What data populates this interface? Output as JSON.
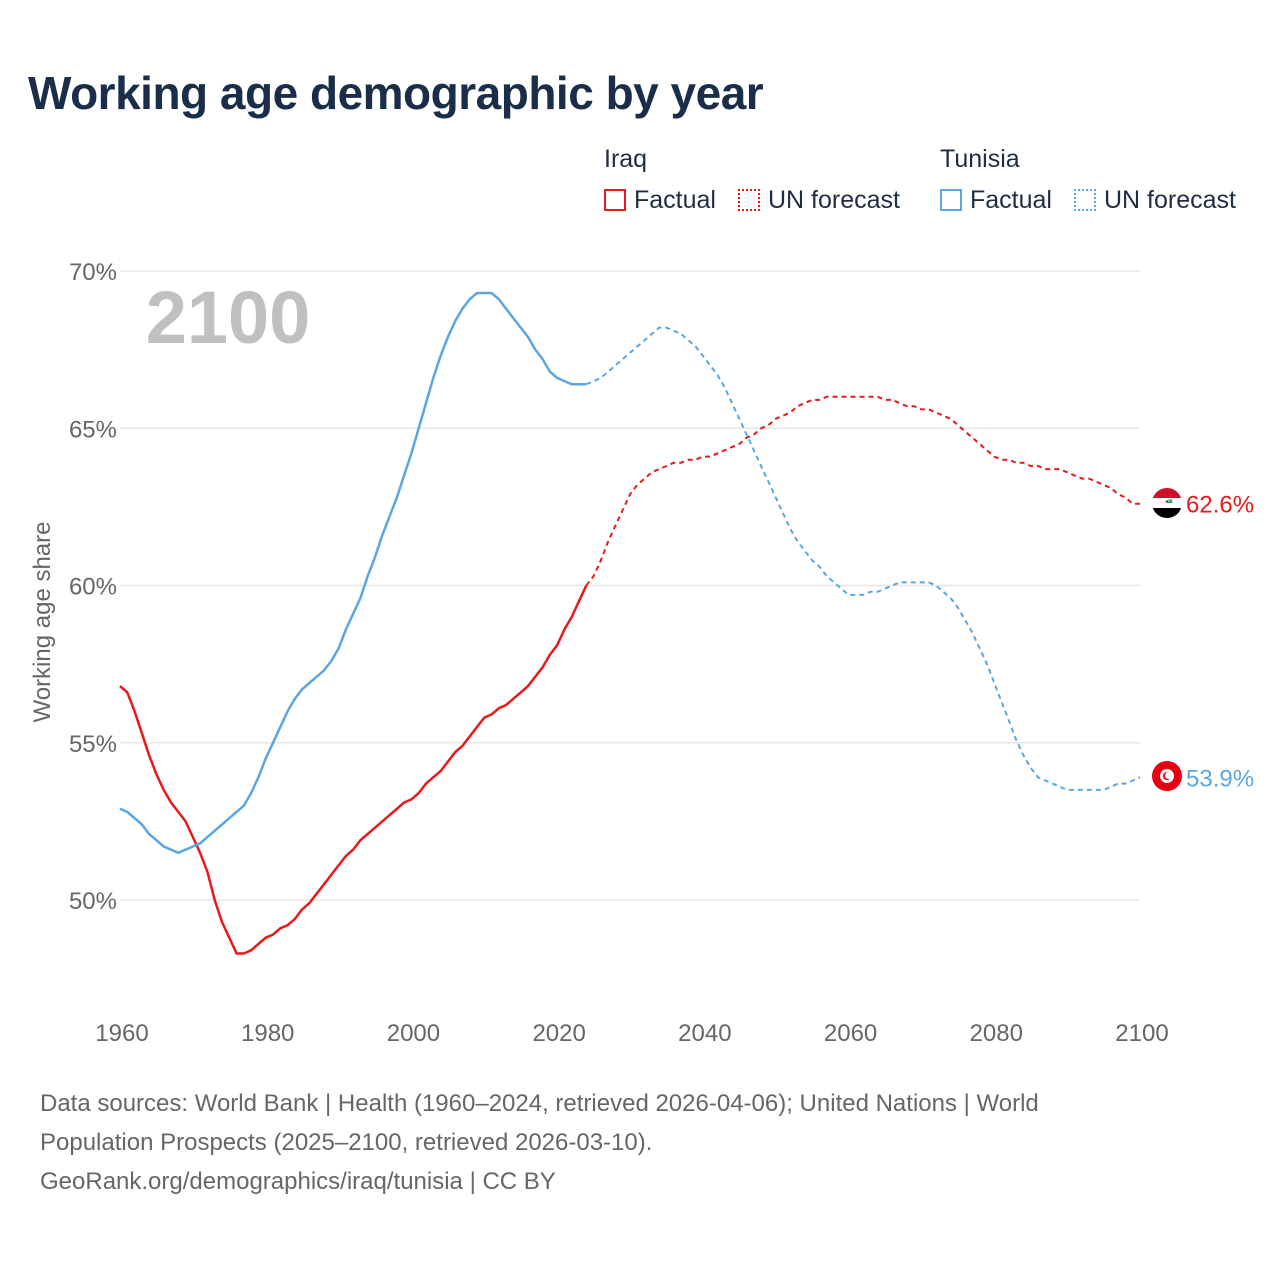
{
  "title": "Working age demographic by year",
  "legend": {
    "groups": [
      {
        "name": "Iraq",
        "factual_label": "Factual",
        "forecast_label": "UN forecast",
        "color": "#e8191a"
      },
      {
        "name": "Tunisia",
        "factual_label": "Factual",
        "forecast_label": "UN forecast",
        "color": "#5aa6e0"
      }
    ]
  },
  "chart_data": {
    "type": "line",
    "title": "Working age demographic by year",
    "ylabel": "Working age share",
    "xlabel": "",
    "xlim": [
      1960,
      2100
    ],
    "ylim": [
      46.5,
      71
    ],
    "x_ticks": [
      1960,
      1980,
      2000,
      2020,
      2040,
      2060,
      2080,
      2100
    ],
    "x_tick_labels": [
      "1960",
      "1980",
      "2000",
      "2020",
      "2040",
      "2060",
      "2080",
      "2100"
    ],
    "y_ticks": [
      50,
      55,
      60,
      65,
      70
    ],
    "y_tick_labels": [
      "50%",
      "55%",
      "60%",
      "65%",
      "70%"
    ],
    "grid": true,
    "year_label": "2100",
    "forecast_start": 2024,
    "series": [
      {
        "name": "Iraq",
        "color": "#e8191a",
        "end_label": "62.6%",
        "points": [
          [
            1960,
            56.8
          ],
          [
            1961,
            56.6
          ],
          [
            1962,
            56.0
          ],
          [
            1963,
            55.3
          ],
          [
            1964,
            54.6
          ],
          [
            1965,
            54.0
          ],
          [
            1966,
            53.5
          ],
          [
            1967,
            53.1
          ],
          [
            1968,
            52.8
          ],
          [
            1969,
            52.5
          ],
          [
            1970,
            52.0
          ],
          [
            1971,
            51.5
          ],
          [
            1972,
            50.9
          ],
          [
            1973,
            50.0
          ],
          [
            1974,
            49.3
          ],
          [
            1975,
            48.8
          ],
          [
            1976,
            48.3
          ],
          [
            1977,
            48.3
          ],
          [
            1978,
            48.4
          ],
          [
            1979,
            48.6
          ],
          [
            1980,
            48.8
          ],
          [
            1981,
            48.9
          ],
          [
            1982,
            49.1
          ],
          [
            1983,
            49.2
          ],
          [
            1984,
            49.4
          ],
          [
            1985,
            49.7
          ],
          [
            1986,
            49.9
          ],
          [
            1987,
            50.2
          ],
          [
            1988,
            50.5
          ],
          [
            1989,
            50.8
          ],
          [
            1990,
            51.1
          ],
          [
            1991,
            51.4
          ],
          [
            1992,
            51.6
          ],
          [
            1993,
            51.9
          ],
          [
            1994,
            52.1
          ],
          [
            1995,
            52.3
          ],
          [
            1996,
            52.5
          ],
          [
            1997,
            52.7
          ],
          [
            1998,
            52.9
          ],
          [
            1999,
            53.1
          ],
          [
            2000,
            53.2
          ],
          [
            2001,
            53.4
          ],
          [
            2002,
            53.7
          ],
          [
            2003,
            53.9
          ],
          [
            2004,
            54.1
          ],
          [
            2005,
            54.4
          ],
          [
            2006,
            54.7
          ],
          [
            2007,
            54.9
          ],
          [
            2008,
            55.2
          ],
          [
            2009,
            55.5
          ],
          [
            2010,
            55.8
          ],
          [
            2011,
            55.9
          ],
          [
            2012,
            56.1
          ],
          [
            2013,
            56.2
          ],
          [
            2014,
            56.4
          ],
          [
            2015,
            56.6
          ],
          [
            2016,
            56.8
          ],
          [
            2017,
            57.1
          ],
          [
            2018,
            57.4
          ],
          [
            2019,
            57.8
          ],
          [
            2020,
            58.1
          ],
          [
            2021,
            58.6
          ],
          [
            2022,
            59.0
          ],
          [
            2023,
            59.5
          ],
          [
            2024,
            60.0
          ],
          [
            2025,
            60.3
          ],
          [
            2026,
            60.8
          ],
          [
            2027,
            61.4
          ],
          [
            2028,
            61.9
          ],
          [
            2029,
            62.4
          ],
          [
            2030,
            62.9
          ],
          [
            2031,
            63.2
          ],
          [
            2032,
            63.4
          ],
          [
            2033,
            63.6
          ],
          [
            2034,
            63.7
          ],
          [
            2035,
            63.8
          ],
          [
            2036,
            63.9
          ],
          [
            2037,
            63.9
          ],
          [
            2038,
            64.0
          ],
          [
            2039,
            64.0
          ],
          [
            2040,
            64.1
          ],
          [
            2041,
            64.1
          ],
          [
            2042,
            64.2
          ],
          [
            2043,
            64.3
          ],
          [
            2044,
            64.4
          ],
          [
            2045,
            64.5
          ],
          [
            2046,
            64.7
          ],
          [
            2047,
            64.8
          ],
          [
            2048,
            65.0
          ],
          [
            2049,
            65.1
          ],
          [
            2050,
            65.3
          ],
          [
            2051,
            65.4
          ],
          [
            2052,
            65.5
          ],
          [
            2053,
            65.7
          ],
          [
            2054,
            65.8
          ],
          [
            2055,
            65.9
          ],
          [
            2056,
            65.9
          ],
          [
            2057,
            66.0
          ],
          [
            2058,
            66.0
          ],
          [
            2059,
            66.0
          ],
          [
            2060,
            66.0
          ],
          [
            2061,
            66.0
          ],
          [
            2062,
            66.0
          ],
          [
            2063,
            66.0
          ],
          [
            2064,
            66.0
          ],
          [
            2065,
            65.9
          ],
          [
            2066,
            65.9
          ],
          [
            2067,
            65.8
          ],
          [
            2068,
            65.7
          ],
          [
            2069,
            65.7
          ],
          [
            2070,
            65.6
          ],
          [
            2071,
            65.6
          ],
          [
            2072,
            65.5
          ],
          [
            2073,
            65.4
          ],
          [
            2074,
            65.3
          ],
          [
            2075,
            65.1
          ],
          [
            2076,
            64.9
          ],
          [
            2077,
            64.7
          ],
          [
            2078,
            64.5
          ],
          [
            2079,
            64.3
          ],
          [
            2080,
            64.1
          ],
          [
            2081,
            64.0
          ],
          [
            2082,
            64.0
          ],
          [
            2083,
            63.9
          ],
          [
            2084,
            63.9
          ],
          [
            2085,
            63.8
          ],
          [
            2086,
            63.8
          ],
          [
            2087,
            63.7
          ],
          [
            2088,
            63.7
          ],
          [
            2089,
            63.7
          ],
          [
            2090,
            63.6
          ],
          [
            2091,
            63.5
          ],
          [
            2092,
            63.4
          ],
          [
            2093,
            63.4
          ],
          [
            2094,
            63.3
          ],
          [
            2095,
            63.2
          ],
          [
            2096,
            63.1
          ],
          [
            2097,
            62.9
          ],
          [
            2098,
            62.8
          ],
          [
            2099,
            62.6
          ],
          [
            2100,
            62.6
          ]
        ]
      },
      {
        "name": "Tunisia",
        "color": "#5aa6e0",
        "end_label": "53.9%",
        "points": [
          [
            1960,
            52.9
          ],
          [
            1961,
            52.8
          ],
          [
            1962,
            52.6
          ],
          [
            1963,
            52.4
          ],
          [
            1964,
            52.1
          ],
          [
            1965,
            51.9
          ],
          [
            1966,
            51.7
          ],
          [
            1967,
            51.6
          ],
          [
            1968,
            51.5
          ],
          [
            1969,
            51.6
          ],
          [
            1970,
            51.7
          ],
          [
            1971,
            51.8
          ],
          [
            1972,
            52.0
          ],
          [
            1973,
            52.2
          ],
          [
            1974,
            52.4
          ],
          [
            1975,
            52.6
          ],
          [
            1976,
            52.8
          ],
          [
            1977,
            53.0
          ],
          [
            1978,
            53.4
          ],
          [
            1979,
            53.9
          ],
          [
            1980,
            54.5
          ],
          [
            1981,
            55.0
          ],
          [
            1982,
            55.5
          ],
          [
            1983,
            56.0
          ],
          [
            1984,
            56.4
          ],
          [
            1985,
            56.7
          ],
          [
            1986,
            56.9
          ],
          [
            1987,
            57.1
          ],
          [
            1988,
            57.3
          ],
          [
            1989,
            57.6
          ],
          [
            1990,
            58.0
          ],
          [
            1991,
            58.6
          ],
          [
            1992,
            59.1
          ],
          [
            1993,
            59.6
          ],
          [
            1994,
            60.3
          ],
          [
            1995,
            60.9
          ],
          [
            1996,
            61.6
          ],
          [
            1997,
            62.2
          ],
          [
            1998,
            62.8
          ],
          [
            1999,
            63.5
          ],
          [
            2000,
            64.2
          ],
          [
            2001,
            65.0
          ],
          [
            2002,
            65.8
          ],
          [
            2003,
            66.6
          ],
          [
            2004,
            67.3
          ],
          [
            2005,
            67.9
          ],
          [
            2006,
            68.4
          ],
          [
            2007,
            68.8
          ],
          [
            2008,
            69.1
          ],
          [
            2009,
            69.3
          ],
          [
            2010,
            69.3
          ],
          [
            2011,
            69.3
          ],
          [
            2012,
            69.1
          ],
          [
            2013,
            68.8
          ],
          [
            2014,
            68.5
          ],
          [
            2015,
            68.2
          ],
          [
            2016,
            67.9
          ],
          [
            2017,
            67.5
          ],
          [
            2018,
            67.2
          ],
          [
            2019,
            66.8
          ],
          [
            2020,
            66.6
          ],
          [
            2021,
            66.5
          ],
          [
            2022,
            66.4
          ],
          [
            2023,
            66.4
          ],
          [
            2024,
            66.4
          ],
          [
            2025,
            66.5
          ],
          [
            2026,
            66.6
          ],
          [
            2027,
            66.8
          ],
          [
            2028,
            67.0
          ],
          [
            2029,
            67.2
          ],
          [
            2030,
            67.4
          ],
          [
            2031,
            67.6
          ],
          [
            2032,
            67.8
          ],
          [
            2033,
            68.0
          ],
          [
            2034,
            68.2
          ],
          [
            2035,
            68.2
          ],
          [
            2036,
            68.1
          ],
          [
            2037,
            68.0
          ],
          [
            2038,
            67.8
          ],
          [
            2039,
            67.6
          ],
          [
            2040,
            67.3
          ],
          [
            2041,
            67.0
          ],
          [
            2042,
            66.7
          ],
          [
            2043,
            66.3
          ],
          [
            2044,
            65.8
          ],
          [
            2045,
            65.3
          ],
          [
            2046,
            64.8
          ],
          [
            2047,
            64.3
          ],
          [
            2048,
            63.8
          ],
          [
            2049,
            63.3
          ],
          [
            2050,
            62.8
          ],
          [
            2051,
            62.3
          ],
          [
            2052,
            61.8
          ],
          [
            2053,
            61.4
          ],
          [
            2054,
            61.1
          ],
          [
            2055,
            60.8
          ],
          [
            2056,
            60.6
          ],
          [
            2057,
            60.3
          ],
          [
            2058,
            60.1
          ],
          [
            2059,
            59.9
          ],
          [
            2060,
            59.7
          ],
          [
            2061,
            59.7
          ],
          [
            2062,
            59.7
          ],
          [
            2063,
            59.8
          ],
          [
            2064,
            59.8
          ],
          [
            2065,
            59.9
          ],
          [
            2066,
            60.0
          ],
          [
            2067,
            60.1
          ],
          [
            2068,
            60.1
          ],
          [
            2069,
            60.1
          ],
          [
            2070,
            60.1
          ],
          [
            2071,
            60.1
          ],
          [
            2072,
            60.0
          ],
          [
            2073,
            59.8
          ],
          [
            2074,
            59.6
          ],
          [
            2075,
            59.3
          ],
          [
            2076,
            58.9
          ],
          [
            2077,
            58.5
          ],
          [
            2078,
            58.0
          ],
          [
            2079,
            57.5
          ],
          [
            2080,
            56.9
          ],
          [
            2081,
            56.3
          ],
          [
            2082,
            55.7
          ],
          [
            2083,
            55.1
          ],
          [
            2084,
            54.6
          ],
          [
            2085,
            54.2
          ],
          [
            2086,
            53.9
          ],
          [
            2087,
            53.8
          ],
          [
            2088,
            53.7
          ],
          [
            2089,
            53.6
          ],
          [
            2090,
            53.5
          ],
          [
            2091,
            53.5
          ],
          [
            2092,
            53.5
          ],
          [
            2093,
            53.5
          ],
          [
            2094,
            53.5
          ],
          [
            2095,
            53.5
          ],
          [
            2096,
            53.6
          ],
          [
            2097,
            53.7
          ],
          [
            2098,
            53.7
          ],
          [
            2099,
            53.8
          ],
          [
            2100,
            53.9
          ]
        ]
      }
    ]
  },
  "footer": {
    "line1": "Data sources: World Bank | Health (1960–2024, retrieved 2026-04-06); United Nations | World",
    "line2": "Population Prospects (2025–2100, retrieved 2026-03-10).",
    "line3": "GeoRank.org/demographics/iraq/tunisia | CC BY"
  }
}
